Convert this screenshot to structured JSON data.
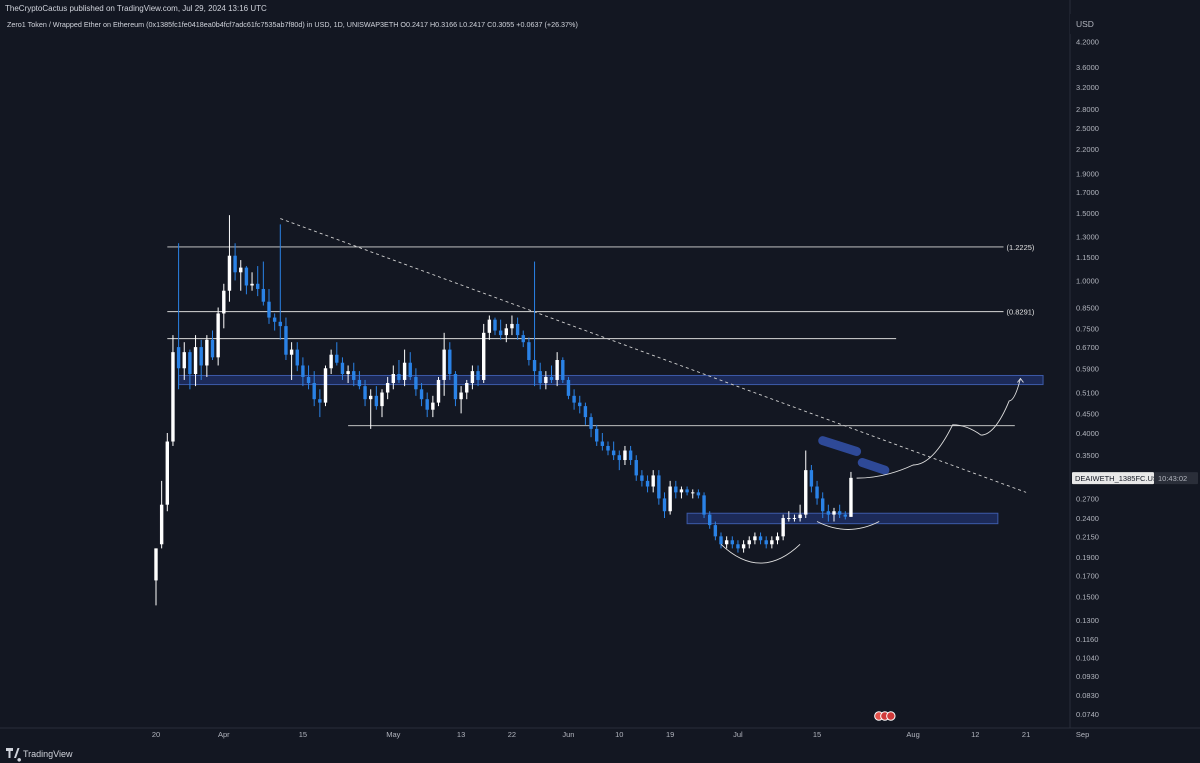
{
  "header": {
    "published_by": "TheCryptoCactus published on TradingView.com, Jul 29, 2024 13:16 UTC",
    "legend": "Zero1 Token / Wrapped Ether on Ethereum (0x1385fc1fe0418ea0b4fcf7adc61fc7535ab7f80d) in USD, 1D, UNISWAP3ETH  O0.2417  H0.3166  L0.2417  C0.3055  +0.0637 (+26.37%)"
  },
  "footer": {
    "brand": "TradingView"
  },
  "colors": {
    "background": "#131722",
    "bull_candle": "#ffffff",
    "bear_candle": "#2a82e6",
    "zone_fill": "#1e2e62",
    "zone_border": "#3c5aa8",
    "level_line": "#d8d8d8",
    "grid_text": "#b2b5be"
  },
  "chart_data": {
    "type": "candlestick",
    "y_scale": "log",
    "ylim": [
      0.068,
      4.5
    ],
    "currency": "USD",
    "y_ticks": [
      4.2,
      3.6,
      3.2,
      2.8,
      2.5,
      2.2,
      1.9,
      1.7,
      1.5,
      1.3,
      1.15,
      1.0,
      0.85,
      0.75,
      0.67,
      0.59,
      0.51,
      0.45,
      0.4,
      0.35,
      0.3,
      0.27,
      0.24,
      0.215,
      0.19,
      0.17,
      0.15,
      0.13,
      0.116,
      0.104,
      0.093,
      0.083,
      0.074
    ],
    "y_tick_labels": [
      "4.2000",
      "3.6000",
      "3.2000",
      "2.8000",
      "2.5000",
      "2.2000",
      "1.9000",
      "1.7000",
      "1.5000",
      "1.3000",
      "1.1500",
      "1.0000",
      "0.8500",
      "0.7500",
      "0.6700",
      "0.5900",
      "0.5100",
      "0.4500",
      "0.4000",
      "0.3500",
      "0.3000",
      "0.2700",
      "0.2400",
      "0.2150",
      "0.1900",
      "0.1700",
      "0.1500",
      "0.1300",
      "0.1160",
      "0.1040",
      "0.0930",
      "0.0830",
      "0.0740"
    ],
    "x_range_days": [
      0,
      170
    ],
    "x_ticks": [
      {
        "day": 0,
        "label": "20"
      },
      {
        "day": 12,
        "label": "Apr"
      },
      {
        "day": 26,
        "label": "15"
      },
      {
        "day": 42,
        "label": "May"
      },
      {
        "day": 54,
        "label": "13"
      },
      {
        "day": 63,
        "label": "22"
      },
      {
        "day": 73,
        "label": "Jun"
      },
      {
        "day": 82,
        "label": "10"
      },
      {
        "day": 91,
        "label": "19"
      },
      {
        "day": 103,
        "label": "Jul"
      },
      {
        "day": 117,
        "label": "15"
      },
      {
        "day": 134,
        "label": "Aug"
      },
      {
        "day": 145,
        "label": "12"
      },
      {
        "day": 154,
        "label": "21"
      },
      {
        "day": 164,
        "label": "Sep"
      }
    ],
    "candles": [
      {
        "d": 0,
        "o": 0.165,
        "h": 0.2,
        "l": 0.142,
        "c": 0.2
      },
      {
        "d": 1,
        "o": 0.205,
        "h": 0.3,
        "l": 0.2,
        "c": 0.26
      },
      {
        "d": 2,
        "o": 0.26,
        "h": 0.4,
        "l": 0.25,
        "c": 0.38
      },
      {
        "d": 3,
        "o": 0.38,
        "h": 0.72,
        "l": 0.37,
        "c": 0.65
      },
      {
        "d": 4,
        "o": 0.67,
        "h": 1.25,
        "l": 0.52,
        "c": 0.59
      },
      {
        "d": 5,
        "o": 0.59,
        "h": 0.69,
        "l": 0.55,
        "c": 0.65
      },
      {
        "d": 6,
        "o": 0.65,
        "h": 0.66,
        "l": 0.52,
        "c": 0.57
      },
      {
        "d": 7,
        "o": 0.57,
        "h": 0.72,
        "l": 0.53,
        "c": 0.67
      },
      {
        "d": 8,
        "o": 0.67,
        "h": 0.7,
        "l": 0.55,
        "c": 0.6
      },
      {
        "d": 9,
        "o": 0.6,
        "h": 0.72,
        "l": 0.56,
        "c": 0.7
      },
      {
        "d": 10,
        "o": 0.7,
        "h": 0.74,
        "l": 0.62,
        "c": 0.63
      },
      {
        "d": 11,
        "o": 0.63,
        "h": 0.85,
        "l": 0.6,
        "c": 0.82
      },
      {
        "d": 12,
        "o": 0.82,
        "h": 0.98,
        "l": 0.75,
        "c": 0.94
      },
      {
        "d": 13,
        "o": 0.94,
        "h": 1.48,
        "l": 0.88,
        "c": 1.16
      },
      {
        "d": 14,
        "o": 1.16,
        "h": 1.25,
        "l": 1.0,
        "c": 1.05
      },
      {
        "d": 15,
        "o": 1.05,
        "h": 1.13,
        "l": 0.94,
        "c": 1.08
      },
      {
        "d": 16,
        "o": 1.08,
        "h": 1.09,
        "l": 0.92,
        "c": 0.97
      },
      {
        "d": 17,
        "o": 0.97,
        "h": 1.05,
        "l": 0.94,
        "c": 0.98
      },
      {
        "d": 18,
        "o": 0.98,
        "h": 1.09,
        "l": 0.91,
        "c": 0.95
      },
      {
        "d": 19,
        "o": 0.95,
        "h": 1.12,
        "l": 0.86,
        "c": 0.88
      },
      {
        "d": 20,
        "o": 0.88,
        "h": 0.95,
        "l": 0.77,
        "c": 0.8
      },
      {
        "d": 21,
        "o": 0.8,
        "h": 0.82,
        "l": 0.74,
        "c": 0.78
      },
      {
        "d": 22,
        "o": 0.78,
        "h": 1.4,
        "l": 0.7,
        "c": 0.76
      },
      {
        "d": 23,
        "o": 0.76,
        "h": 0.8,
        "l": 0.62,
        "c": 0.64
      },
      {
        "d": 24,
        "o": 0.64,
        "h": 0.69,
        "l": 0.55,
        "c": 0.66
      },
      {
        "d": 25,
        "o": 0.66,
        "h": 0.69,
        "l": 0.58,
        "c": 0.6
      },
      {
        "d": 26,
        "o": 0.6,
        "h": 0.63,
        "l": 0.53,
        "c": 0.56
      },
      {
        "d": 27,
        "o": 0.56,
        "h": 0.6,
        "l": 0.52,
        "c": 0.54
      },
      {
        "d": 28,
        "o": 0.54,
        "h": 0.58,
        "l": 0.47,
        "c": 0.49
      },
      {
        "d": 29,
        "o": 0.49,
        "h": 0.52,
        "l": 0.44,
        "c": 0.48
      },
      {
        "d": 30,
        "o": 0.48,
        "h": 0.6,
        "l": 0.47,
        "c": 0.59
      },
      {
        "d": 31,
        "o": 0.59,
        "h": 0.66,
        "l": 0.57,
        "c": 0.64
      },
      {
        "d": 32,
        "o": 0.64,
        "h": 0.69,
        "l": 0.6,
        "c": 0.61
      },
      {
        "d": 33,
        "o": 0.61,
        "h": 0.63,
        "l": 0.55,
        "c": 0.57
      },
      {
        "d": 34,
        "o": 0.57,
        "h": 0.6,
        "l": 0.54,
        "c": 0.58
      },
      {
        "d": 35,
        "o": 0.58,
        "h": 0.61,
        "l": 0.53,
        "c": 0.55
      },
      {
        "d": 36,
        "o": 0.55,
        "h": 0.58,
        "l": 0.52,
        "c": 0.53
      },
      {
        "d": 37,
        "o": 0.53,
        "h": 0.55,
        "l": 0.47,
        "c": 0.49
      },
      {
        "d": 38,
        "o": 0.49,
        "h": 0.52,
        "l": 0.41,
        "c": 0.5
      },
      {
        "d": 39,
        "o": 0.5,
        "h": 0.53,
        "l": 0.46,
        "c": 0.47
      },
      {
        "d": 40,
        "o": 0.47,
        "h": 0.52,
        "l": 0.44,
        "c": 0.51
      },
      {
        "d": 41,
        "o": 0.51,
        "h": 0.56,
        "l": 0.49,
        "c": 0.54
      },
      {
        "d": 42,
        "o": 0.54,
        "h": 0.6,
        "l": 0.52,
        "c": 0.57
      },
      {
        "d": 43,
        "o": 0.57,
        "h": 0.62,
        "l": 0.54,
        "c": 0.55
      },
      {
        "d": 44,
        "o": 0.55,
        "h": 0.66,
        "l": 0.53,
        "c": 0.61
      },
      {
        "d": 45,
        "o": 0.61,
        "h": 0.65,
        "l": 0.55,
        "c": 0.56
      },
      {
        "d": 46,
        "o": 0.56,
        "h": 0.59,
        "l": 0.5,
        "c": 0.52
      },
      {
        "d": 47,
        "o": 0.52,
        "h": 0.54,
        "l": 0.47,
        "c": 0.49
      },
      {
        "d": 48,
        "o": 0.49,
        "h": 0.51,
        "l": 0.44,
        "c": 0.46
      },
      {
        "d": 49,
        "o": 0.46,
        "h": 0.5,
        "l": 0.44,
        "c": 0.48
      },
      {
        "d": 50,
        "o": 0.48,
        "h": 0.56,
        "l": 0.47,
        "c": 0.55
      },
      {
        "d": 51,
        "o": 0.55,
        "h": 0.73,
        "l": 0.5,
        "c": 0.66
      },
      {
        "d": 52,
        "o": 0.66,
        "h": 0.69,
        "l": 0.55,
        "c": 0.57
      },
      {
        "d": 53,
        "o": 0.57,
        "h": 0.58,
        "l": 0.47,
        "c": 0.49
      },
      {
        "d": 54,
        "o": 0.49,
        "h": 0.53,
        "l": 0.45,
        "c": 0.51
      },
      {
        "d": 55,
        "o": 0.51,
        "h": 0.55,
        "l": 0.49,
        "c": 0.54
      },
      {
        "d": 56,
        "o": 0.54,
        "h": 0.6,
        "l": 0.52,
        "c": 0.58
      },
      {
        "d": 57,
        "o": 0.58,
        "h": 0.6,
        "l": 0.53,
        "c": 0.55
      },
      {
        "d": 58,
        "o": 0.55,
        "h": 0.77,
        "l": 0.54,
        "c": 0.73
      },
      {
        "d": 59,
        "o": 0.73,
        "h": 0.81,
        "l": 0.7,
        "c": 0.79
      },
      {
        "d": 60,
        "o": 0.79,
        "h": 0.8,
        "l": 0.72,
        "c": 0.74
      },
      {
        "d": 61,
        "o": 0.74,
        "h": 0.79,
        "l": 0.7,
        "c": 0.72
      },
      {
        "d": 62,
        "o": 0.72,
        "h": 0.77,
        "l": 0.69,
        "c": 0.75
      },
      {
        "d": 63,
        "o": 0.75,
        "h": 0.81,
        "l": 0.72,
        "c": 0.77
      },
      {
        "d": 64,
        "o": 0.77,
        "h": 0.8,
        "l": 0.7,
        "c": 0.72
      },
      {
        "d": 65,
        "o": 0.72,
        "h": 0.74,
        "l": 0.67,
        "c": 0.69
      },
      {
        "d": 66,
        "o": 0.69,
        "h": 0.71,
        "l": 0.6,
        "c": 0.62
      },
      {
        "d": 67,
        "o": 0.62,
        "h": 1.12,
        "l": 0.53,
        "c": 0.58
      },
      {
        "d": 68,
        "o": 0.58,
        "h": 0.61,
        "l": 0.52,
        "c": 0.54
      },
      {
        "d": 69,
        "o": 0.54,
        "h": 0.58,
        "l": 0.52,
        "c": 0.56
      },
      {
        "d": 70,
        "o": 0.56,
        "h": 0.6,
        "l": 0.54,
        "c": 0.55
      },
      {
        "d": 71,
        "o": 0.55,
        "h": 0.65,
        "l": 0.53,
        "c": 0.62
      },
      {
        "d": 72,
        "o": 0.62,
        "h": 0.63,
        "l": 0.54,
        "c": 0.55
      },
      {
        "d": 73,
        "o": 0.55,
        "h": 0.56,
        "l": 0.49,
        "c": 0.5
      },
      {
        "d": 74,
        "o": 0.5,
        "h": 0.52,
        "l": 0.46,
        "c": 0.48
      },
      {
        "d": 75,
        "o": 0.48,
        "h": 0.5,
        "l": 0.45,
        "c": 0.47
      },
      {
        "d": 76,
        "o": 0.47,
        "h": 0.48,
        "l": 0.42,
        "c": 0.44
      },
      {
        "d": 77,
        "o": 0.44,
        "h": 0.45,
        "l": 0.39,
        "c": 0.41
      },
      {
        "d": 78,
        "o": 0.41,
        "h": 0.42,
        "l": 0.37,
        "c": 0.38
      },
      {
        "d": 79,
        "o": 0.38,
        "h": 0.4,
        "l": 0.36,
        "c": 0.37
      },
      {
        "d": 80,
        "o": 0.37,
        "h": 0.38,
        "l": 0.35,
        "c": 0.36
      },
      {
        "d": 81,
        "o": 0.36,
        "h": 0.38,
        "l": 0.34,
        "c": 0.35
      },
      {
        "d": 82,
        "o": 0.35,
        "h": 0.36,
        "l": 0.32,
        "c": 0.34
      },
      {
        "d": 83,
        "o": 0.34,
        "h": 0.37,
        "l": 0.33,
        "c": 0.36
      },
      {
        "d": 84,
        "o": 0.36,
        "h": 0.37,
        "l": 0.33,
        "c": 0.34
      },
      {
        "d": 85,
        "o": 0.34,
        "h": 0.35,
        "l": 0.3,
        "c": 0.31
      },
      {
        "d": 86,
        "o": 0.31,
        "h": 0.32,
        "l": 0.29,
        "c": 0.3
      },
      {
        "d": 87,
        "o": 0.3,
        "h": 0.31,
        "l": 0.28,
        "c": 0.29
      },
      {
        "d": 88,
        "o": 0.29,
        "h": 0.32,
        "l": 0.28,
        "c": 0.31
      },
      {
        "d": 89,
        "o": 0.31,
        "h": 0.32,
        "l": 0.26,
        "c": 0.27
      },
      {
        "d": 90,
        "o": 0.27,
        "h": 0.28,
        "l": 0.24,
        "c": 0.25
      },
      {
        "d": 91,
        "o": 0.25,
        "h": 0.3,
        "l": 0.245,
        "c": 0.29
      },
      {
        "d": 92,
        "o": 0.29,
        "h": 0.3,
        "l": 0.27,
        "c": 0.28
      },
      {
        "d": 93,
        "o": 0.28,
        "h": 0.29,
        "l": 0.27,
        "c": 0.285
      },
      {
        "d": 94,
        "o": 0.285,
        "h": 0.29,
        "l": 0.275,
        "c": 0.28
      },
      {
        "d": 95,
        "o": 0.28,
        "h": 0.285,
        "l": 0.27,
        "c": 0.28
      },
      {
        "d": 96,
        "o": 0.28,
        "h": 0.285,
        "l": 0.27,
        "c": 0.275
      },
      {
        "d": 97,
        "o": 0.275,
        "h": 0.28,
        "l": 0.24,
        "c": 0.245
      },
      {
        "d": 98,
        "o": 0.245,
        "h": 0.25,
        "l": 0.225,
        "c": 0.23
      },
      {
        "d": 99,
        "o": 0.23,
        "h": 0.235,
        "l": 0.21,
        "c": 0.215
      },
      {
        "d": 100,
        "o": 0.215,
        "h": 0.22,
        "l": 0.2,
        "c": 0.205
      },
      {
        "d": 101,
        "o": 0.205,
        "h": 0.215,
        "l": 0.2,
        "c": 0.21
      },
      {
        "d": 102,
        "o": 0.21,
        "h": 0.215,
        "l": 0.2,
        "c": 0.205
      },
      {
        "d": 103,
        "o": 0.205,
        "h": 0.21,
        "l": 0.195,
        "c": 0.2
      },
      {
        "d": 104,
        "o": 0.2,
        "h": 0.21,
        "l": 0.195,
        "c": 0.205
      },
      {
        "d": 105,
        "o": 0.205,
        "h": 0.215,
        "l": 0.2,
        "c": 0.21
      },
      {
        "d": 106,
        "o": 0.21,
        "h": 0.22,
        "l": 0.205,
        "c": 0.215
      },
      {
        "d": 107,
        "o": 0.215,
        "h": 0.22,
        "l": 0.205,
        "c": 0.21
      },
      {
        "d": 108,
        "o": 0.21,
        "h": 0.215,
        "l": 0.2,
        "c": 0.205
      },
      {
        "d": 109,
        "o": 0.205,
        "h": 0.215,
        "l": 0.2,
        "c": 0.21
      },
      {
        "d": 110,
        "o": 0.21,
        "h": 0.22,
        "l": 0.205,
        "c": 0.215
      },
      {
        "d": 111,
        "o": 0.215,
        "h": 0.245,
        "l": 0.21,
        "c": 0.24
      },
      {
        "d": 112,
        "o": 0.24,
        "h": 0.25,
        "l": 0.235,
        "c": 0.24
      },
      {
        "d": 113,
        "o": 0.24,
        "h": 0.245,
        "l": 0.235,
        "c": 0.24
      },
      {
        "d": 114,
        "o": 0.24,
        "h": 0.26,
        "l": 0.235,
        "c": 0.245
      },
      {
        "d": 115,
        "o": 0.245,
        "h": 0.36,
        "l": 0.24,
        "c": 0.32
      },
      {
        "d": 116,
        "o": 0.32,
        "h": 0.33,
        "l": 0.28,
        "c": 0.29
      },
      {
        "d": 117,
        "o": 0.29,
        "h": 0.3,
        "l": 0.26,
        "c": 0.27
      },
      {
        "d": 118,
        "o": 0.27,
        "h": 0.28,
        "l": 0.24,
        "c": 0.25
      },
      {
        "d": 119,
        "o": 0.25,
        "h": 0.26,
        "l": 0.235,
        "c": 0.245
      },
      {
        "d": 120,
        "o": 0.245,
        "h": 0.255,
        "l": 0.235,
        "c": 0.25
      },
      {
        "d": 121,
        "o": 0.25,
        "h": 0.26,
        "l": 0.24,
        "c": 0.245
      },
      {
        "d": 122,
        "o": 0.245,
        "h": 0.25,
        "l": 0.238,
        "c": 0.242
      },
      {
        "d": 123,
        "o": 0.2417,
        "h": 0.3166,
        "l": 0.2417,
        "c": 0.3055
      }
    ],
    "horizontal_levels": [
      {
        "price": 1.2225,
        "label": "(1.2225)",
        "d_start": 2,
        "d_end": 150
      },
      {
        "price": 0.8291,
        "label": "(0.8291)",
        "d_start": 2,
        "d_end": 150
      },
      {
        "price": 0.705,
        "label": "",
        "d_start": 2,
        "d_end": 131
      },
      {
        "price": 0.418,
        "label": "",
        "d_start": 34,
        "d_end": 152
      }
    ],
    "zones": [
      {
        "top": 0.565,
        "bottom": 0.535,
        "d_start": 4,
        "d_end": 157
      },
      {
        "top": 0.247,
        "bottom": 0.232,
        "d_start": 94,
        "d_end": 149
      }
    ],
    "trendline": {
      "d1": 22,
      "p1": 1.45,
      "d2": 154,
      "p2": 0.28
    },
    "price_label": {
      "text": "DEAIWETH_1385FC.USD",
      "time": "10:43:02",
      "value": 0.305
    },
    "axis_currency_label": "USD",
    "highlight_pills": [
      {
        "d1": 118,
        "p1": 0.382,
        "d2": 124,
        "p2": 0.358
      },
      {
        "d1": 125,
        "p1": 0.335,
        "d2": 129,
        "p2": 0.32
      }
    ],
    "projection_path": [
      {
        "d": 124,
        "p": 0.305
      },
      {
        "d": 134,
        "p": 0.33
      },
      {
        "d": 141,
        "p": 0.42
      },
      {
        "d": 146,
        "p": 0.395
      },
      {
        "d": 151,
        "p": 0.485
      },
      {
        "d": 153,
        "p": 0.555
      }
    ],
    "rounded_bottoms": [
      {
        "d1": 100,
        "d2": 114,
        "p_top": 0.205,
        "p_bottom": 0.185
      },
      {
        "d1": 117,
        "d2": 128,
        "p_top": 0.235,
        "p_bottom": 0.225
      }
    ],
    "event_marker_day": 129
  }
}
